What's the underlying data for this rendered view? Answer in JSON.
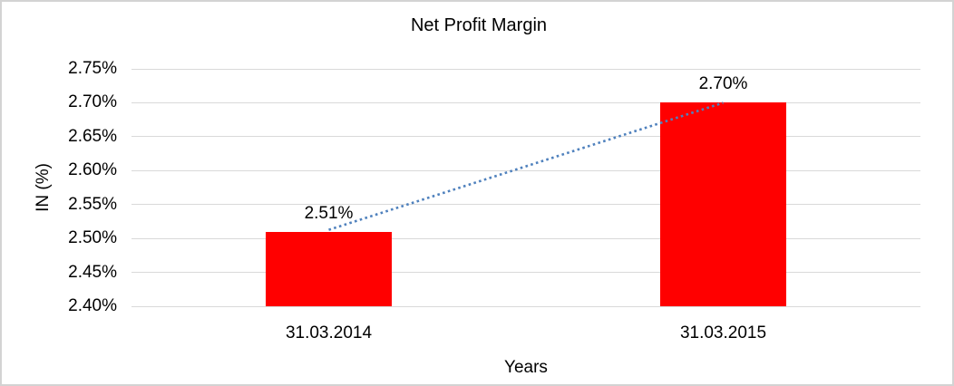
{
  "chart_data": {
    "type": "bar",
    "title": "Net Profit Margin",
    "categories": [
      "31.03.2014",
      "31.03.2015"
    ],
    "values": [
      2.51,
      2.7
    ],
    "data_labels": [
      "2.51%",
      "2.70%"
    ],
    "xlabel": "Years",
    "ylabel": "IN (%)",
    "ylim": [
      2.4,
      2.75
    ],
    "yticks": [
      2.4,
      2.45,
      2.5,
      2.55,
      2.6,
      2.65,
      2.7,
      2.75
    ],
    "ytick_labels": [
      "2.40%",
      "2.45%",
      "2.50%",
      "2.55%",
      "2.60%",
      "2.65%",
      "2.70%",
      "2.75%"
    ],
    "grid": true,
    "legend": "none",
    "trendline": {
      "style": "dotted",
      "connects": [
        "31.03.2014",
        "31.03.2015"
      ]
    },
    "colors": {
      "bar": "#FF0000",
      "trendline": "#4F81BD",
      "gridline": "#D9D9D9",
      "text": "#000000",
      "frame": "#D3D3D3",
      "background": "#FFFFFF"
    }
  }
}
